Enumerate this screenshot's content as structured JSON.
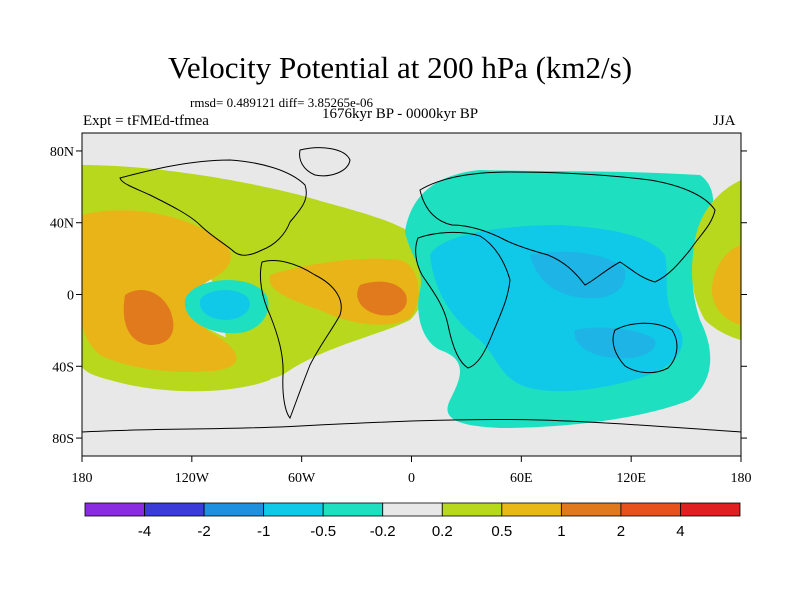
{
  "map": {
    "title": "Velocity Potential at 200 hPa (km2/s)",
    "stats": "rmsd= 0.489121 diff= 3.85265e-06",
    "expt": "Expt = tFMEd-tfmea",
    "period": "1676kyr BP - 0000kyr BP",
    "season": "JJA",
    "lon_ticks": [
      "180",
      "120W",
      "60W",
      "0",
      "60E",
      "120E",
      "180"
    ],
    "lat_ticks": [
      "80N",
      "40N",
      "0",
      "40S",
      "80S"
    ]
  },
  "colorbar": {
    "labels": [
      "-4",
      "-2",
      "-1",
      "-0.5",
      "-0.2",
      "0.2",
      "0.5",
      "1",
      "2",
      "4"
    ],
    "colors": [
      "#8a2be2",
      "#3b3bd9",
      "#1e90e0",
      "#10c8e8",
      "#1ee0c0",
      "#e8e8e8",
      "#b8d81e",
      "#e8b818",
      "#e0781c",
      "#e8501c",
      "#e02020"
    ]
  },
  "fill_colors": {
    "c_m1": "#1eb4e6",
    "c_m05": "#10c8e8",
    "c_m02": "#1ee0c0",
    "c_zero": "#e8e8e8",
    "c_p02": "#b8d81e",
    "c_p05": "#e8b418",
    "c_p1": "#e07a1c"
  }
}
